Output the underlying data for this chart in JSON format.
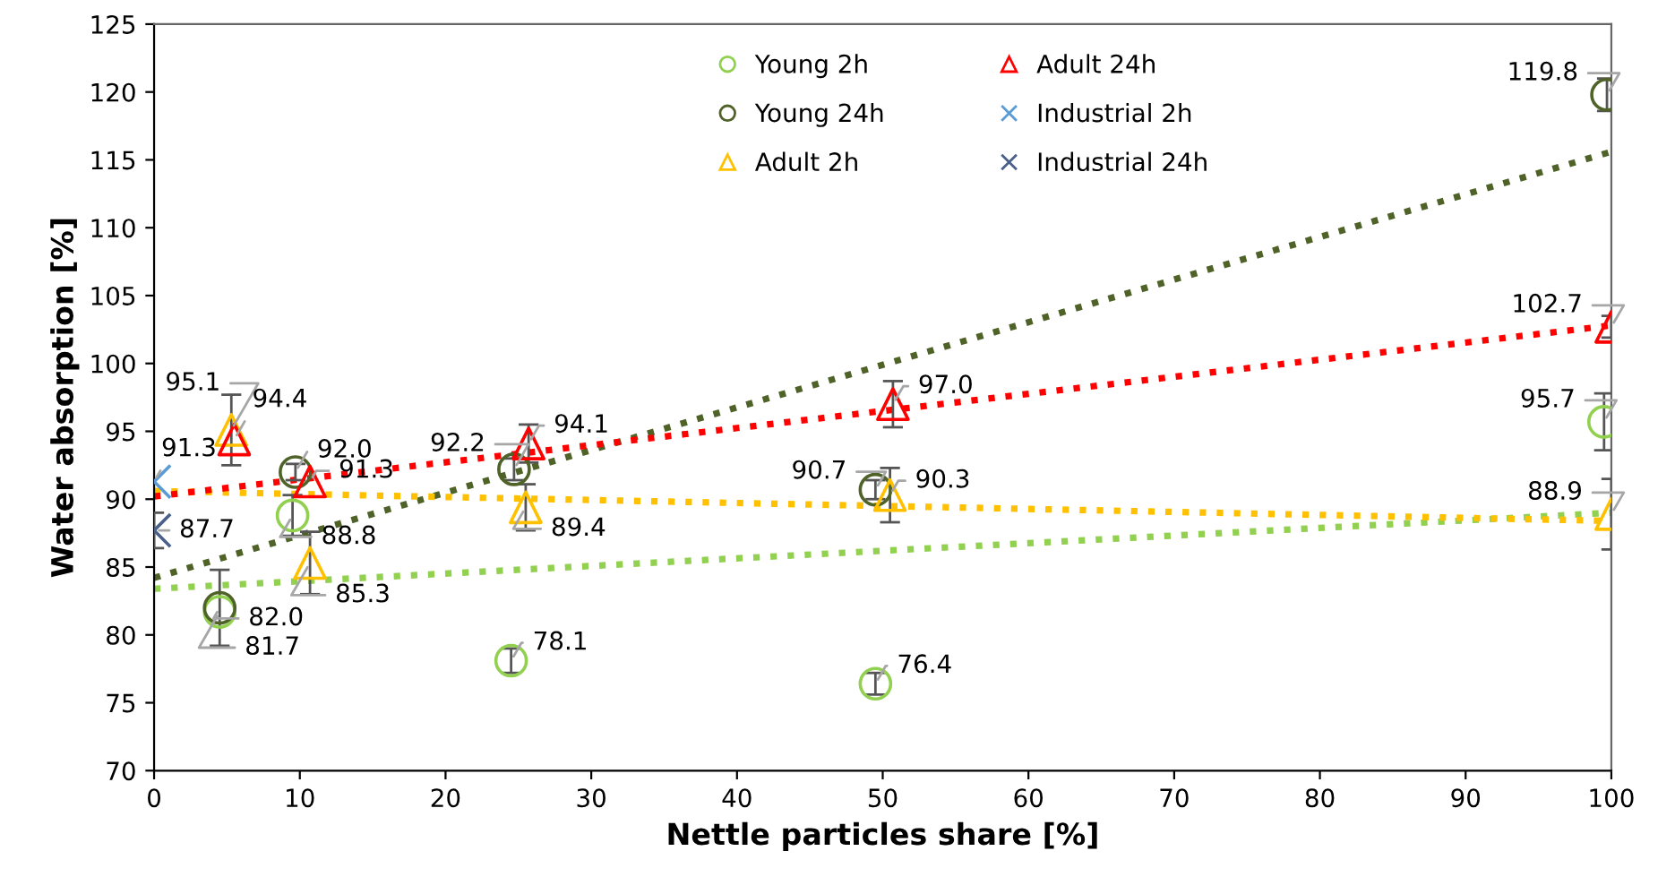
{
  "chart_data": {
    "type": "scatter",
    "xlabel": "Nettle particles share [%]",
    "ylabel": "Water absorption [%]",
    "xlim": [
      0,
      100
    ],
    "xticks": [
      0,
      10,
      20,
      30,
      40,
      50,
      60,
      70,
      80,
      90,
      100
    ],
    "ylim": [
      70,
      125
    ],
    "yticks": [
      70,
      75,
      80,
      85,
      90,
      95,
      100,
      105,
      110,
      115,
      120,
      125
    ],
    "grid": false,
    "legend": "top",
    "series": [
      {
        "name": "Young 2h",
        "color": "#92d050",
        "marker": "circle",
        "x": [
          4.5,
          9.5,
          24.5,
          49.5,
          99.5
        ],
        "values": [
          81.7,
          88.8,
          78.1,
          76.4,
          95.7
        ],
        "value_labels": [
          "81.7",
          "88.8",
          "78.1",
          "76.4",
          "95.7"
        ],
        "errors": [
          null,
          1.5,
          0.9,
          0.8,
          2.1
        ]
      },
      {
        "name": "Young 24h",
        "color": "#4f6228",
        "marker": "circle",
        "x": [
          4.5,
          9.7,
          24.7,
          49.5,
          99.7
        ],
        "values": [
          82.0,
          92.0,
          92.2,
          90.7,
          119.8
        ],
        "value_labels": [
          "82.0",
          "92.0",
          "92.2",
          "90.7",
          "119.8"
        ],
        "errors": [
          2.8,
          0.6,
          0.8,
          0.7,
          1.2
        ]
      },
      {
        "name": "Adult 2h",
        "color": "#ffc000",
        "marker": "triangle",
        "x": [
          5.3,
          10.7,
          25.5,
          50.5,
          100
        ],
        "values": [
          95.1,
          85.3,
          89.4,
          90.3,
          88.9
        ],
        "value_labels": [
          "95.1",
          "85.3",
          "89.4",
          "90.3",
          "88.9"
        ],
        "errors": [
          2.6,
          2.3,
          1.7,
          2.0,
          2.6
        ]
      },
      {
        "name": "Adult 24h",
        "color": "#ff0000",
        "marker": "triangle",
        "x": [
          5.5,
          10.7,
          25.7,
          50.7,
          100
        ],
        "values": [
          94.4,
          91.3,
          94.1,
          97.0,
          102.7
        ],
        "value_labels": [
          "94.4",
          "91.3",
          "94.1",
          "97.0",
          "102.7"
        ],
        "errors": [
          null,
          null,
          1.4,
          1.7,
          0.8
        ]
      },
      {
        "name": "Industrial 2h",
        "color": "#5b9bd5",
        "marker": "cross",
        "x": [
          0
        ],
        "values": [
          91.3
        ],
        "value_labels": [
          "91.3"
        ],
        "errors": [
          null
        ]
      },
      {
        "name": "Industrial 24h",
        "color": "#4a5f8a",
        "marker": "cross",
        "x": [
          0
        ],
        "values": [
          87.7
        ],
        "value_labels": [
          "87.7"
        ],
        "errors": [
          1.3
        ]
      },
      {
        "type": "line",
        "color": "#92d050",
        "line_style": "dotted",
        "x": [
          0,
          100
        ],
        "values": [
          83.4,
          89.0
        ]
      },
      {
        "type": "line",
        "color": "#4f6228",
        "line_style": "dotted",
        "x": [
          0,
          100
        ],
        "values": [
          84.2,
          115.6
        ]
      },
      {
        "type": "line",
        "color": "#ffc000",
        "line_style": "dotted",
        "x": [
          0,
          100
        ],
        "values": [
          90.6,
          88.4
        ]
      },
      {
        "type": "line",
        "color": "#ff0000",
        "line_style": "dotted",
        "x": [
          0,
          100
        ],
        "values": [
          90.2,
          102.8
        ]
      }
    ]
  }
}
